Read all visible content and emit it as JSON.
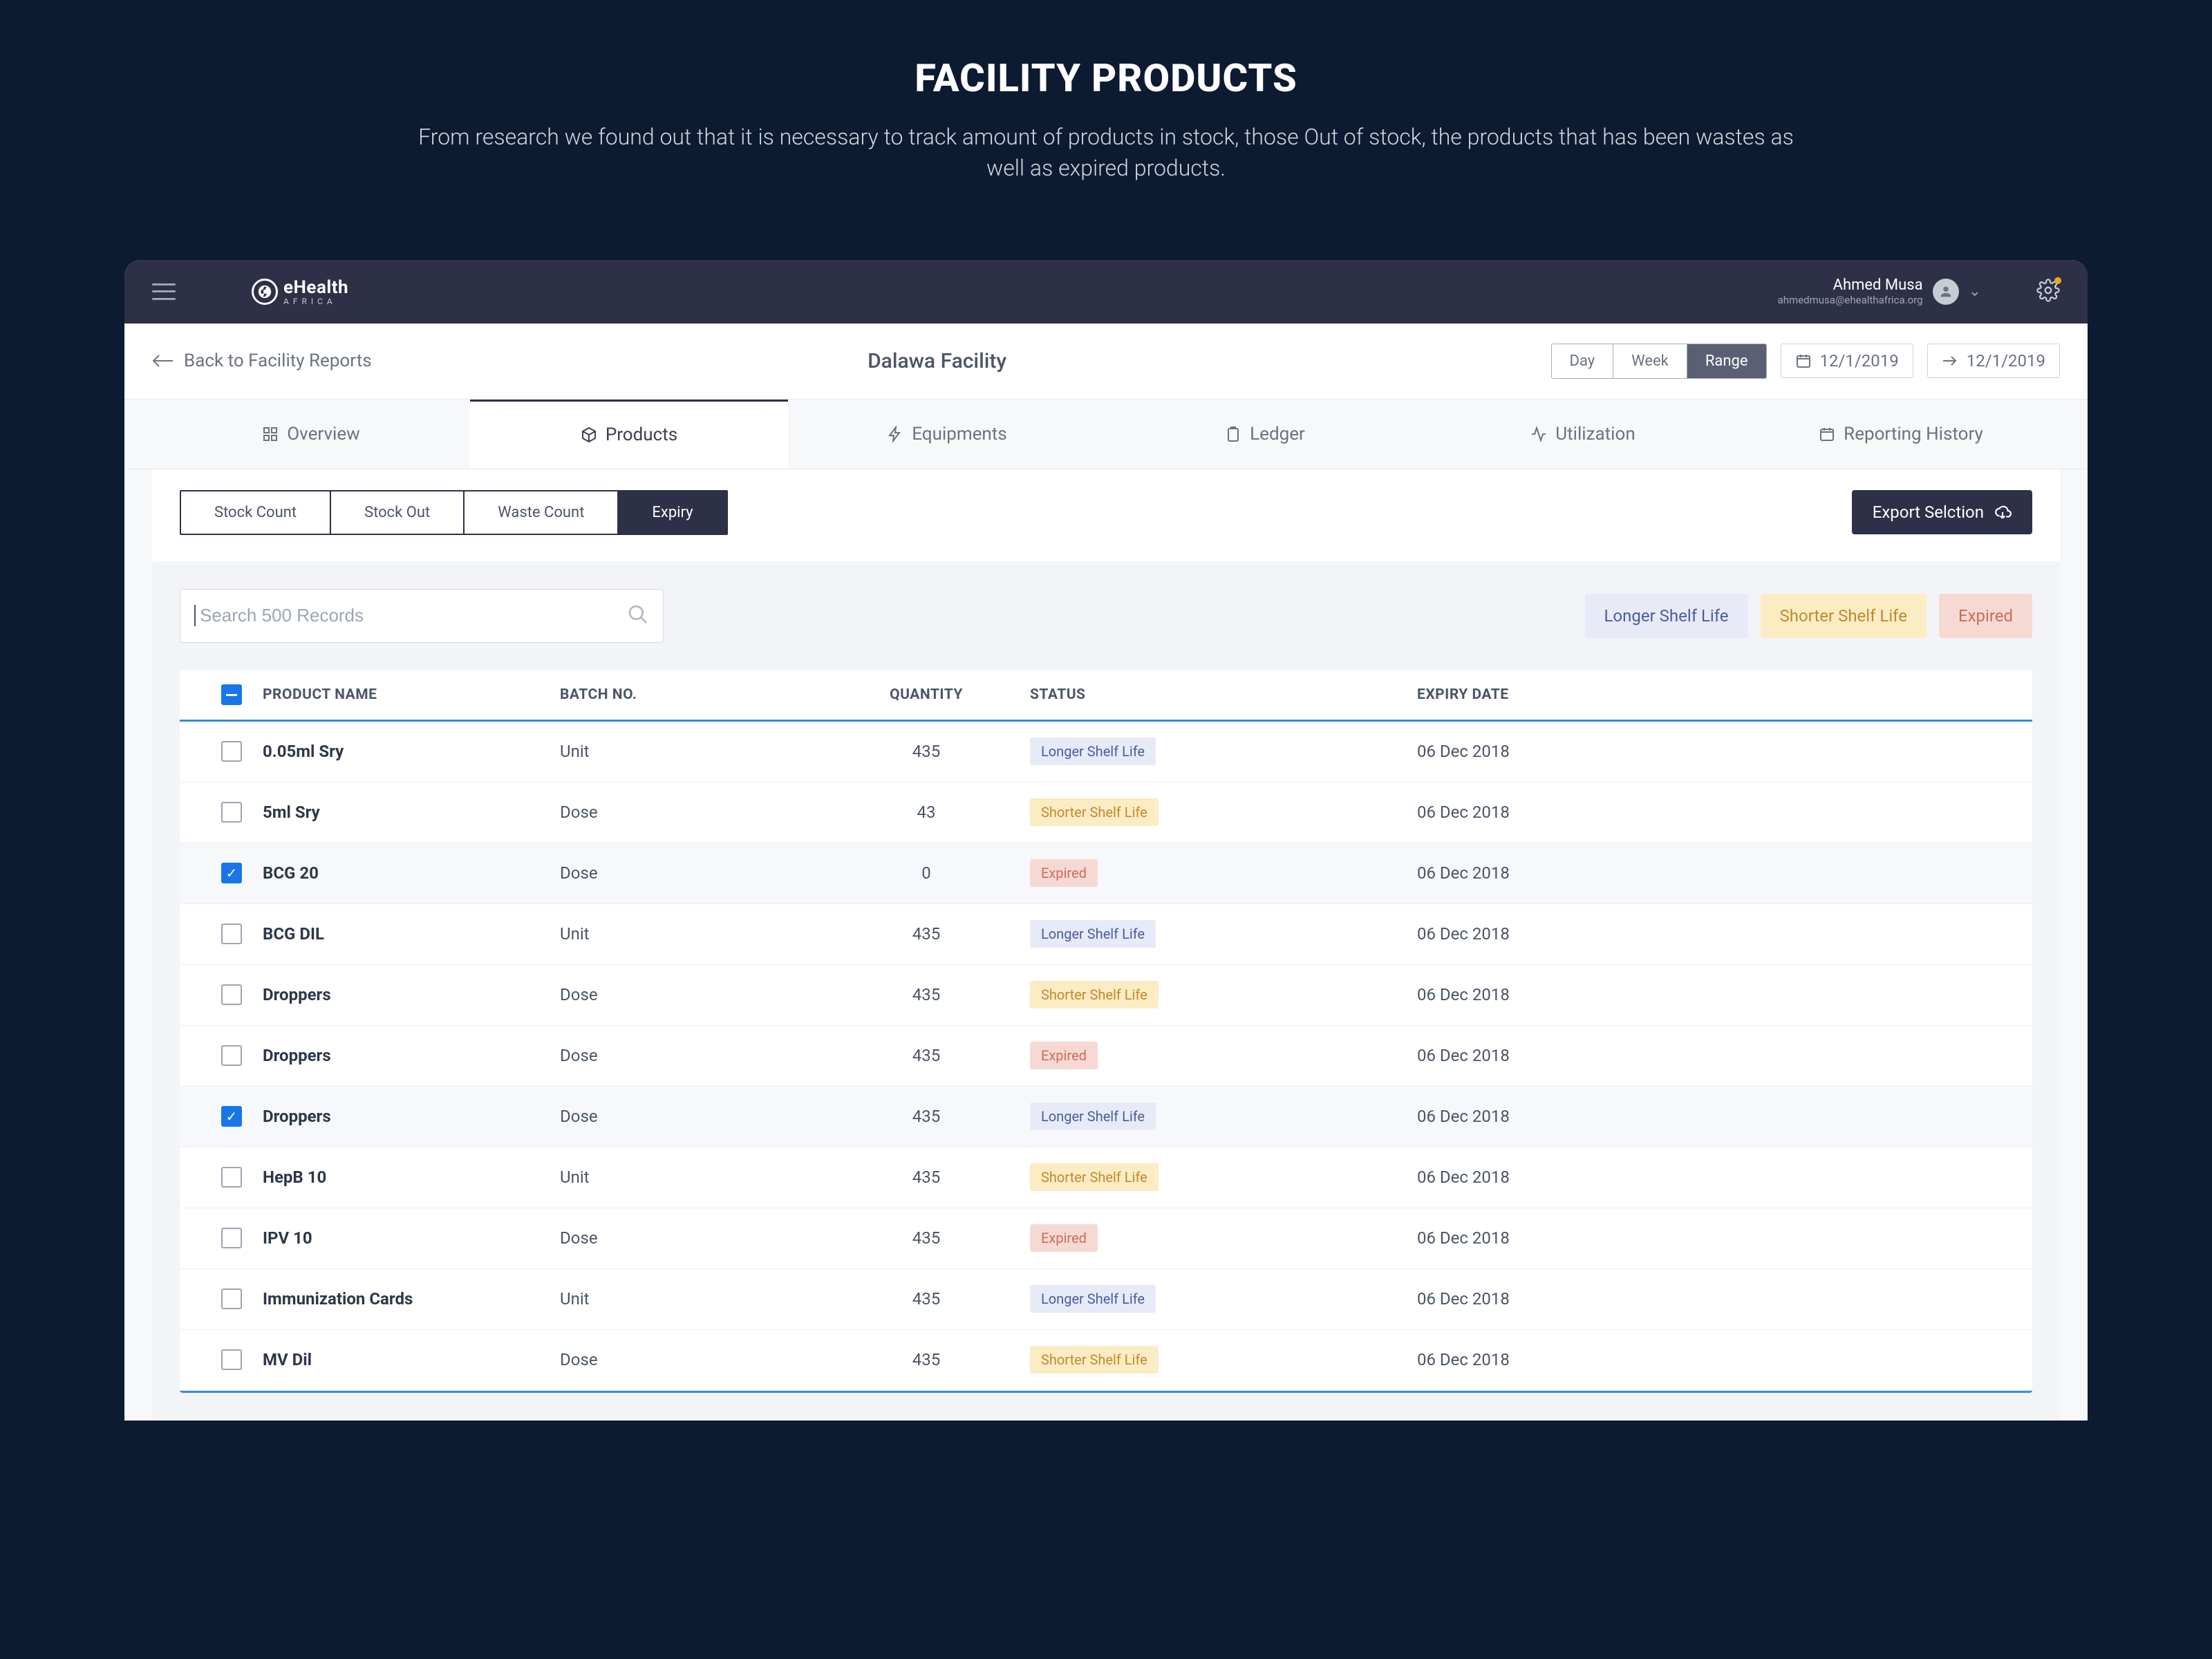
{
  "hero": {
    "title": "FACILITY PRODUCTS",
    "desc": "From research we found out that it is necessary to track amount of products in stock, those Out of stock, the products that has been wastes as well as expired products."
  },
  "topbar": {
    "logo_line1": "eHealth",
    "logo_line2": "AFRICA",
    "user_name": "Ahmed Musa",
    "user_email": "ahmedmusa@ehealthafrica.org"
  },
  "subhead": {
    "back_label": "Back to Facility Reports",
    "facility": "Dalawa Facility",
    "range_day": "Day",
    "range_week": "Week",
    "range_range": "Range",
    "date_from": "12/1/2019",
    "date_to": "12/1/2019"
  },
  "tabs": {
    "overview": "Overview",
    "products": "Products",
    "equipments": "Equipments",
    "ledger": "Ledger",
    "utilization": "Utilization",
    "reporting": "Reporting History"
  },
  "subtabs": {
    "stock_count": "Stock Count",
    "stock_out": "Stock Out",
    "waste_count": "Waste Count",
    "expiry": "Expiry"
  },
  "export_label": "Export Selction",
  "search_placeholder": "Search 500 Records",
  "chips": {
    "longer": "Longer Shelf Life",
    "shorter": "Shorter Shelf Life",
    "expired": "Expired"
  },
  "columns": {
    "name": "PRODUCT NAME",
    "batch": "BATCH NO.",
    "qty": "QUANTITY",
    "status": "STATUS",
    "expiry": "EXPIRY DATE"
  },
  "status_labels": {
    "longer": "Longer Shelf Life",
    "shorter": "Shorter Shelf Life",
    "expired": "Expired"
  },
  "colors": {
    "page_bg": "#0c1b31",
    "frame_bg": "#f7f8fa",
    "topbar_bg": "#2d3047",
    "accent": "#1976e8",
    "longer_bg": "#e7ebf7",
    "longer_fg": "#4a5ba3",
    "shorter_bg": "#fbecc4",
    "shorter_fg": "#c08a2a",
    "expired_bg": "#f7d9d4",
    "expired_fg": "#cf6b5a"
  },
  "rows": [
    {
      "name": "0.05ml Sry",
      "batch": "Unit",
      "qty": "435",
      "status": "longer",
      "expiry": "06 Dec 2018",
      "checked": false
    },
    {
      "name": "5ml Sry",
      "batch": "Dose",
      "qty": "43",
      "status": "shorter",
      "expiry": "06 Dec 2018",
      "checked": false
    },
    {
      "name": "BCG 20",
      "batch": "Dose",
      "qty": "0",
      "status": "expired",
      "expiry": "06 Dec 2018",
      "checked": true
    },
    {
      "name": "BCG DIL",
      "batch": "Unit",
      "qty": "435",
      "status": "longer",
      "expiry": "06 Dec 2018",
      "checked": false
    },
    {
      "name": "Droppers",
      "batch": "Dose",
      "qty": "435",
      "status": "shorter",
      "expiry": "06 Dec 2018",
      "checked": false
    },
    {
      "name": "Droppers",
      "batch": "Dose",
      "qty": "435",
      "status": "expired",
      "expiry": "06 Dec 2018",
      "checked": false
    },
    {
      "name": "Droppers",
      "batch": "Dose",
      "qty": "435",
      "status": "longer",
      "expiry": "06 Dec 2018",
      "checked": true
    },
    {
      "name": "HepB 10",
      "batch": "Unit",
      "qty": "435",
      "status": "shorter",
      "expiry": "06 Dec 2018",
      "checked": false
    },
    {
      "name": "IPV 10",
      "batch": "Dose",
      "qty": "435",
      "status": "expired",
      "expiry": "06 Dec 2018",
      "checked": false
    },
    {
      "name": "Immunization Cards",
      "batch": "Unit",
      "qty": "435",
      "status": "longer",
      "expiry": "06 Dec 2018",
      "checked": false
    },
    {
      "name": "MV Dil",
      "batch": "Dose",
      "qty": "435",
      "status": "shorter",
      "expiry": "06 Dec 2018",
      "checked": false
    }
  ]
}
